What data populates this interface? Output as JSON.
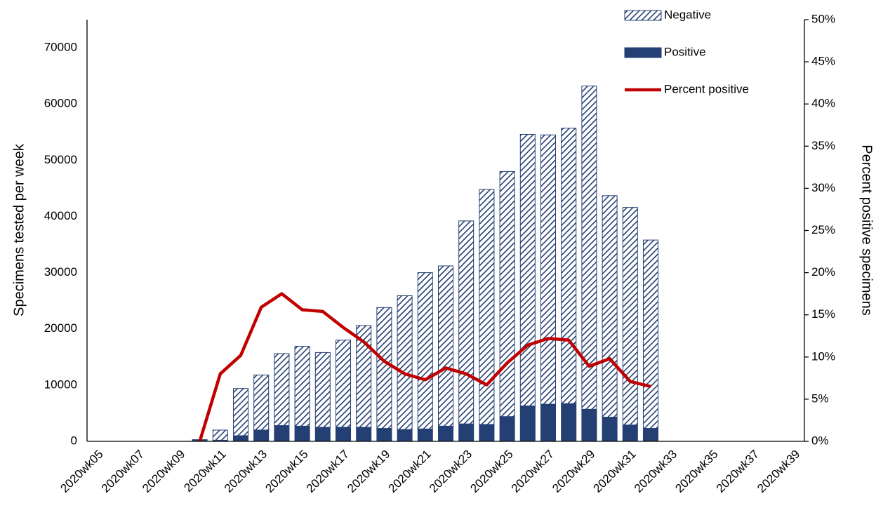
{
  "chart_data": {
    "type": "bar",
    "categories": [
      "2020wk05",
      null,
      "2020wk07",
      null,
      "2020wk09",
      null,
      "2020wk11",
      null,
      "2020wk13",
      null,
      "2020wk15",
      null,
      "2020wk17",
      null,
      "2020wk19",
      null,
      "2020wk21",
      null,
      "2020wk23",
      null,
      "2020wk25",
      null,
      "2020wk27",
      null,
      "2020wk29",
      null,
      "2020wk31",
      null,
      "2020wk33",
      null,
      "2020wk35",
      null,
      "2020wk37",
      null,
      "2020wk39"
    ],
    "series": [
      {
        "name": "Negative",
        "color": "#243f73",
        "pattern": "hatch",
        "values": [
          null,
          null,
          null,
          null,
          null,
          50,
          1800,
          8400,
          9800,
          12800,
          14200,
          13300,
          15500,
          18100,
          21500,
          23800,
          27800,
          28500,
          36100,
          41800,
          43600,
          48300,
          47900,
          49000,
          57500,
          39400,
          38700,
          33500,
          null,
          null,
          null,
          null,
          null,
          null,
          null
        ]
      },
      {
        "name": "Positive",
        "color": "#243f73",
        "values": [
          null,
          null,
          null,
          null,
          null,
          250,
          200,
          1000,
          2000,
          2800,
          2700,
          2500,
          2500,
          2500,
          2300,
          2100,
          2200,
          2700,
          3100,
          3000,
          4400,
          6300,
          6600,
          6700,
          5700,
          4300,
          2900,
          2300,
          null,
          null,
          null,
          null,
          null,
          null,
          null
        ]
      },
      {
        "name": "Percent positive",
        "type": "line",
        "axis": "y2",
        "color": "#c00000",
        "values": [
          null,
          null,
          null,
          null,
          null,
          0,
          8.0,
          10.2,
          15.9,
          17.5,
          15.6,
          15.4,
          13.5,
          11.8,
          9.5,
          8.0,
          7.3,
          8.7,
          8.0,
          6.7,
          9.3,
          11.4,
          12.2,
          12.0,
          8.9,
          9.8,
          7.1,
          6.5,
          null,
          null,
          null,
          null,
          null,
          null,
          null
        ]
      }
    ],
    "ylabel": "Specimens tested per week",
    "y2label": "Percent positive specimens",
    "ylim": [
      0,
      75000
    ],
    "yticks": [
      0,
      10000,
      20000,
      30000,
      40000,
      50000,
      60000,
      70000
    ],
    "y2lim": [
      0,
      50
    ],
    "y2ticks": [
      {
        "value": 0,
        "label": "0%"
      },
      {
        "value": 5,
        "label": "5%"
      },
      {
        "value": 10,
        "label": "10%"
      },
      {
        "value": 15,
        "label": "15%"
      },
      {
        "value": 20,
        "label": "20%"
      },
      {
        "value": 25,
        "label": "25%"
      },
      {
        "value": 30,
        "label": "30%"
      },
      {
        "value": 35,
        "label": "35%"
      },
      {
        "value": 40,
        "label": "40%"
      },
      {
        "value": 45,
        "label": "45%"
      },
      {
        "value": 50,
        "label": "50%"
      }
    ],
    "grid": false,
    "legend": "top-right"
  }
}
